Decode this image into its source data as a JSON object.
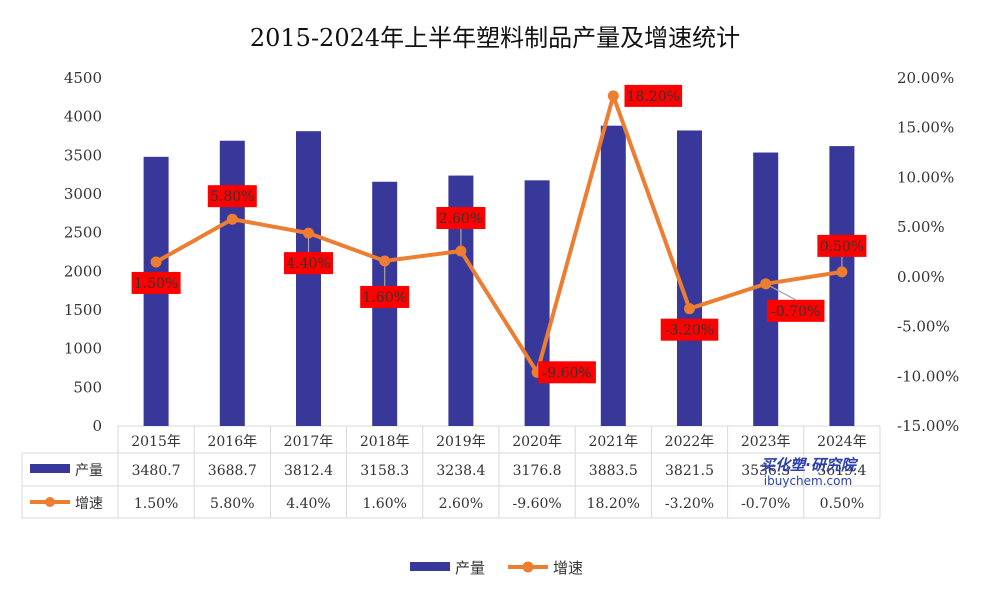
{
  "chart_data": {
    "type": "bar",
    "title": "2015-2024年上半年塑料制品产量及增速统计",
    "categories": [
      "2015年",
      "2016年",
      "2017年",
      "2018年",
      "2019年",
      "2020年",
      "2021年",
      "2022年",
      "2023年",
      "2024年"
    ],
    "series": [
      {
        "name": "产量",
        "type": "bar",
        "axis": "left",
        "color": "#38389a",
        "values": [
          3480.7,
          3688.7,
          3812.4,
          3158.3,
          3238.4,
          3176.8,
          3883.5,
          3821.5,
          3536.3,
          3619.4
        ],
        "table_text": [
          "3480.7",
          "3688.7",
          "3812.4",
          "3158.3",
          "3238.4",
          "3176.8",
          "3883.5",
          "3821.5",
          "3536.3",
          "3619.4"
        ]
      },
      {
        "name": "增速",
        "type": "line",
        "axis": "right",
        "color": "#ed7d31",
        "values": [
          1.5,
          5.8,
          4.4,
          1.6,
          2.6,
          -9.6,
          18.2,
          -3.2,
          -0.7,
          0.5
        ],
        "labels": [
          "1.50%",
          "5.80%",
          "4.40%",
          "1.60%",
          "2.60%",
          "-9.60%",
          "18.20%",
          "-3.20%",
          "-0.70%",
          "0.50%"
        ]
      }
    ],
    "y_left": {
      "min": 0,
      "max": 4500,
      "ticks": [
        "0",
        "500",
        "1000",
        "1500",
        "2000",
        "2500",
        "3000",
        "3500",
        "4000",
        "4500"
      ]
    },
    "y_right": {
      "min": -15,
      "max": 20,
      "ticks": [
        "-15.00%",
        "-10.00%",
        "-5.00%",
        "0.00%",
        "5.00%",
        "10.00%",
        "15.00%",
        "20.00%"
      ]
    },
    "data_label_background": "#ff0000",
    "data_table": true,
    "legend_position": "bottom",
    "grid": false
  },
  "watermark": {
    "line1": "买化塑·研究院",
    "line2": "ibuychem.com"
  }
}
